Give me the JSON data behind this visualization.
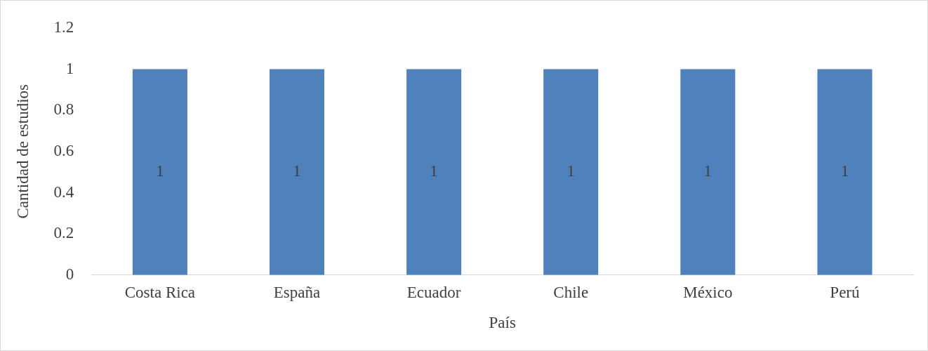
{
  "chart_data": {
    "type": "bar",
    "xlabel": "País",
    "ylabel": "Cantidad de estudios",
    "categories": [
      "Costa Rica",
      "España",
      "Ecuador",
      "Chile",
      "México",
      "Perú"
    ],
    "values": [
      1,
      1,
      1,
      1,
      1,
      1
    ],
    "color": "#4f81bd",
    "ylim": [
      0,
      1.2
    ],
    "yticks": [
      0,
      0.2,
      0.4,
      0.6,
      0.8,
      1,
      1.2
    ],
    "grid": false,
    "legend": false,
    "data_labels": true
  }
}
